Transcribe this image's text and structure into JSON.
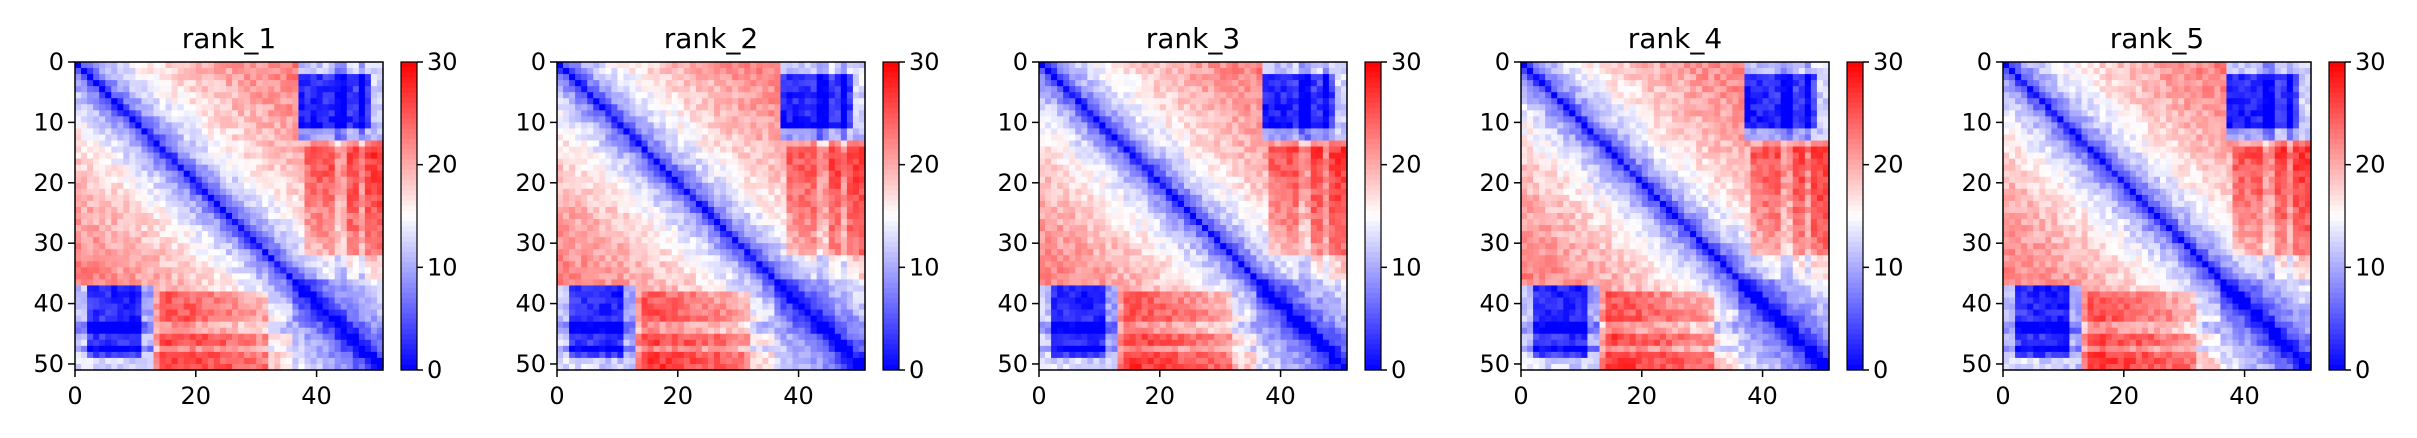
{
  "chart_data": [
    {
      "type": "heatmap",
      "title": "rank_1",
      "x_range": [
        0,
        51
      ],
      "y_range": [
        0,
        51
      ],
      "x_ticks": [
        0,
        20,
        40
      ],
      "y_ticks": [
        0,
        10,
        20,
        30,
        40,
        50
      ],
      "colorbar": {
        "range": [
          0,
          30
        ],
        "ticks": [
          0,
          10,
          20,
          30
        ]
      },
      "colormap": [
        "#0000ff",
        "#ffffff",
        "#ff0000"
      ],
      "matrix_size": 51
    },
    {
      "type": "heatmap",
      "title": "rank_2",
      "x_range": [
        0,
        51
      ],
      "y_range": [
        0,
        51
      ],
      "x_ticks": [
        0,
        20,
        40
      ],
      "y_ticks": [
        0,
        10,
        20,
        30,
        40,
        50
      ],
      "colorbar": {
        "range": [
          0,
          30
        ],
        "ticks": [
          0,
          10,
          20,
          30
        ]
      },
      "colormap": [
        "#0000ff",
        "#ffffff",
        "#ff0000"
      ],
      "matrix_size": 51
    },
    {
      "type": "heatmap",
      "title": "rank_3",
      "x_range": [
        0,
        51
      ],
      "y_range": [
        0,
        51
      ],
      "x_ticks": [
        0,
        20,
        40
      ],
      "y_ticks": [
        0,
        10,
        20,
        30,
        40,
        50
      ],
      "colorbar": {
        "range": [
          0,
          30
        ],
        "ticks": [
          0,
          10,
          20,
          30
        ]
      },
      "colormap": [
        "#0000ff",
        "#ffffff",
        "#ff0000"
      ],
      "matrix_size": 51
    },
    {
      "type": "heatmap",
      "title": "rank_4",
      "x_range": [
        0,
        51
      ],
      "y_range": [
        0,
        51
      ],
      "x_ticks": [
        0,
        20,
        40
      ],
      "y_ticks": [
        0,
        10,
        20,
        30,
        40,
        50
      ],
      "colorbar": {
        "range": [
          0,
          30
        ],
        "ticks": [
          0,
          10,
          20,
          30
        ]
      },
      "colormap": [
        "#0000ff",
        "#ffffff",
        "#ff0000"
      ],
      "matrix_size": 51
    },
    {
      "type": "heatmap",
      "title": "rank_5",
      "x_range": [
        0,
        51
      ],
      "y_range": [
        0,
        51
      ],
      "x_ticks": [
        0,
        20,
        40
      ],
      "y_ticks": [
        0,
        10,
        20,
        30,
        40,
        50
      ],
      "colorbar": {
        "range": [
          0,
          30
        ],
        "ticks": [
          0,
          10,
          20,
          30
        ]
      },
      "colormap": [
        "#0000ff",
        "#ffffff",
        "#ff0000"
      ],
      "matrix_size": 51
    }
  ]
}
